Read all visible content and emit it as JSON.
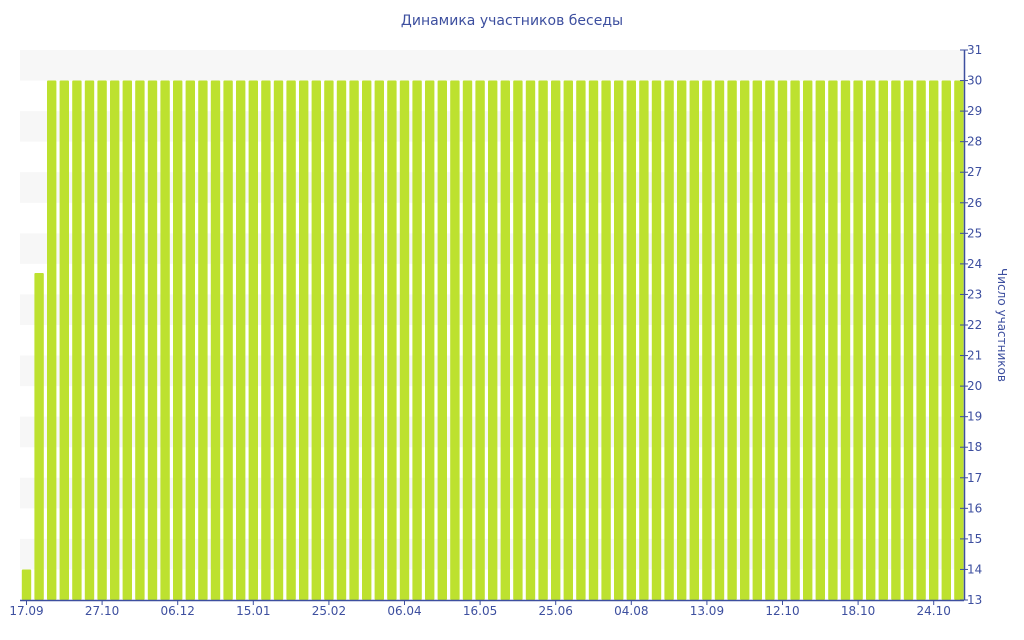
{
  "chart_data": {
    "type": "bar",
    "title": "Динамика участников беседы",
    "ylabel": "Число участников",
    "xlabel": "",
    "ylim": [
      13,
      31
    ],
    "y_axis_side": "right",
    "grid": "alternating horizontal bands",
    "legend": "none",
    "colors": {
      "bar": "#bde12f",
      "axis": "#3d4f9f",
      "band": "#f7f7f7"
    },
    "x_tick_labels": [
      "17.09",
      "27.10",
      "06.12",
      "15.01",
      "25.02",
      "06.04",
      "16.05",
      "25.06",
      "04.08",
      "13.09",
      "12.10",
      "18.10",
      "24.10"
    ],
    "x_tick_every_n_bars": 6,
    "y_ticks": [
      13,
      14,
      15,
      16,
      17,
      18,
      19,
      20,
      21,
      22,
      23,
      24,
      25,
      26,
      27,
      28,
      29,
      30,
      31
    ],
    "values": [
      14,
      23.7,
      30,
      30,
      30,
      30,
      30,
      30,
      30,
      30,
      30,
      30,
      30,
      30,
      30,
      30,
      30,
      30,
      30,
      30,
      30,
      30,
      30,
      30,
      30,
      30,
      30,
      30,
      30,
      30,
      30,
      30,
      30,
      30,
      30,
      30,
      30,
      30,
      30,
      30,
      30,
      30,
      30,
      30,
      30,
      30,
      30,
      30,
      30,
      30,
      30,
      30,
      30,
      30,
      30,
      30,
      30,
      30,
      30,
      30,
      30,
      30,
      30,
      30,
      30,
      30,
      30,
      30,
      30,
      30,
      30,
      30,
      30,
      30,
      30
    ]
  }
}
